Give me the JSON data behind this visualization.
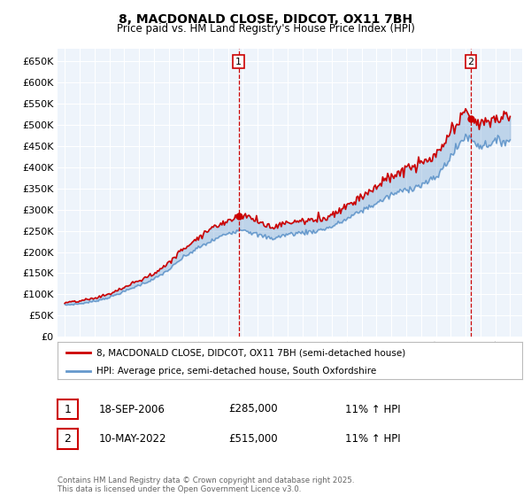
{
  "title1": "8, MACDONALD CLOSE, DIDCOT, OX11 7BH",
  "title2": "Price paid vs. HM Land Registry's House Price Index (HPI)",
  "legend1": "8, MACDONALD CLOSE, DIDCOT, OX11 7BH (semi-detached house)",
  "legend2": "HPI: Average price, semi-detached house, South Oxfordshire",
  "ann1_date": "18-SEP-2006",
  "ann1_price": "£285,000",
  "ann1_hpi": "11% ↑ HPI",
  "ann2_date": "10-MAY-2022",
  "ann2_price": "£515,000",
  "ann2_hpi": "11% ↑ HPI",
  "footer": "Contains HM Land Registry data © Crown copyright and database right 2025.\nThis data is licensed under the Open Government Licence v3.0.",
  "color_red": "#cc0000",
  "color_blue": "#6699cc",
  "color_fill": "#ddeeff",
  "color_dashed": "#cc0000",
  "background": "#ffffff",
  "plot_bg": "#eef4fb",
  "grid_color": "#ffffff",
  "ylim": [
    0,
    680000
  ],
  "yticks": [
    0,
    50000,
    100000,
    150000,
    200000,
    250000,
    300000,
    350000,
    400000,
    450000,
    500000,
    550000,
    600000,
    650000
  ],
  "sale1_year": 2006.72,
  "sale1_price": 285000,
  "sale2_year": 2022.36,
  "sale2_price": 515000,
  "hpi_base": [
    75000,
    78000,
    84000,
    93000,
    107000,
    122000,
    136000,
    158000,
    188000,
    210000,
    228000,
    245000,
    255000,
    240000,
    232000,
    242000,
    246000,
    250000,
    260000,
    278000,
    298000,
    315000,
    335000,
    348000,
    358000,
    375000,
    425000,
    475000,
    450000,
    460000,
    465000
  ],
  "prop_base": [
    80000,
    84000,
    91000,
    101000,
    116000,
    133000,
    148000,
    175000,
    208000,
    236000,
    258000,
    275000,
    290000,
    272000,
    258000,
    270000,
    273000,
    276000,
    288000,
    310000,
    332000,
    355000,
    378000,
    396000,
    408000,
    425000,
    480000,
    530000,
    500000,
    515000,
    520000
  ],
  "xmin": 1994.5,
  "xmax": 2025.8
}
